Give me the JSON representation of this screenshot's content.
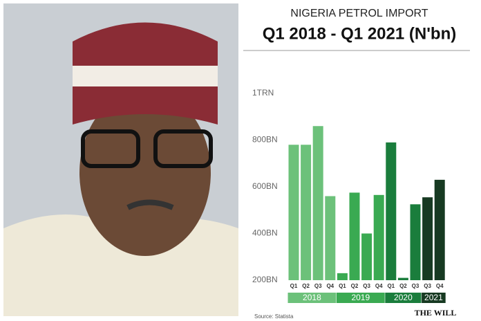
{
  "chart_data": {
    "type": "bar",
    "title": "NIGERIA PETROL IMPORT",
    "subtitle": "Q1 2018 - Q1  2021 (N'bn)",
    "groups": [
      {
        "label": "2018",
        "color": "#6cc17a",
        "categories": [
          "Q1",
          "Q2",
          "Q3",
          "Q4"
        ],
        "values": [
          780,
          780,
          860,
          560
        ]
      },
      {
        "label": "2019",
        "color": "#3aaa52",
        "categories": [
          "Q1",
          "Q2",
          "Q3",
          "Q4"
        ],
        "values": [
          230,
          575,
          400,
          565
        ]
      },
      {
        "label": "2020",
        "color": "#1a7d3c",
        "categories": [
          "Q1",
          "Q2",
          "Q3"
        ],
        "values": [
          790,
          210,
          525
        ]
      },
      {
        "label": "2021",
        "color": "#173a22",
        "categories": [
          "Q3",
          "Q4"
        ],
        "values": [
          555,
          630
        ]
      }
    ],
    "ylim": [
      200,
      1000
    ],
    "yticks": [
      {
        "value": 1000,
        "label": "1TRN"
      },
      {
        "value": 800,
        "label": "800BN"
      },
      {
        "value": 600,
        "label": "600BN"
      },
      {
        "value": 400,
        "label": "400BN"
      },
      {
        "value": 200,
        "label": "200BN"
      }
    ],
    "source": "Source: Statista",
    "brand": "THE WILL"
  }
}
